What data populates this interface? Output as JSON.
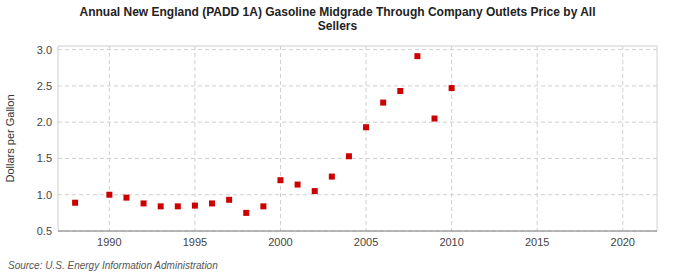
{
  "chart_data": {
    "type": "scatter",
    "title": "Annual New England (PADD 1A) Gasoline Midgrade Through Company Outlets Price by All\nSellers",
    "ylabel": "Dollars per Gallon",
    "annotations": [
      "Source: U.S. Energy Information Administration"
    ],
    "x": [
      1988,
      1990,
      1991,
      1992,
      1993,
      1994,
      1995,
      1996,
      1997,
      1998,
      1999,
      2000,
      2001,
      2002,
      2003,
      2004,
      2005,
      2006,
      2007,
      2008,
      2009,
      2010
    ],
    "values": [
      0.89,
      1.0,
      0.96,
      0.88,
      0.84,
      0.84,
      0.85,
      0.88,
      0.93,
      0.75,
      0.84,
      1.2,
      1.14,
      1.05,
      1.25,
      1.53,
      1.93,
      2.27,
      2.43,
      2.91,
      2.05,
      2.47
    ],
    "color": "#cc0000",
    "marker": "square",
    "xlim": [
      1987,
      2022
    ],
    "ylim": [
      0.5,
      3.05
    ],
    "xticks": [
      1990,
      1995,
      2000,
      2005,
      2010,
      2015,
      2020
    ],
    "yticks": [
      0.5,
      {
        "value": 1.0,
        "label": "1.0"
      },
      1.5,
      {
        "value": 2.0,
        "label": "2.0"
      },
      2.5,
      {
        "value": 3.0,
        "label": "3.0"
      }
    ],
    "grid": true
  }
}
